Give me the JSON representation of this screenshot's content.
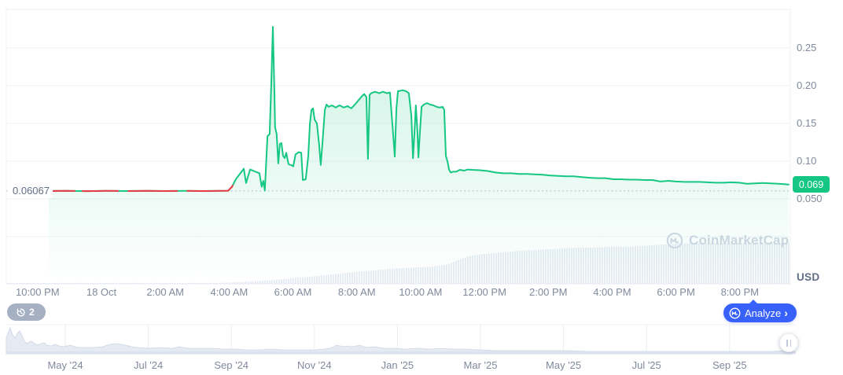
{
  "colors": {
    "up_green": "#16c784",
    "down_red": "#ea3943",
    "accent_blue": "#3861fb",
    "grid": "#f0f2f6",
    "frame": "#edf0f4",
    "axis_line": "#e7eaef",
    "label_gray": "#80899c",
    "volume_bar": "#e4eaf3",
    "nav_fill": "#e6ebf3",
    "nav_stroke": "#d3dbe8",
    "nav_base": "#dde3ee",
    "nav_grid": "#e9ecf2",
    "dotted_ref": "#c6cedb",
    "watermark": "#d0d7e4",
    "pill_gray": "#a6b0c3"
  },
  "chart": {
    "current_price": {
      "value": "0.069"
    },
    "reference_price": {
      "value": "0.06067"
    },
    "unit_label": "USD",
    "watermark_text": "CoinMarketCap"
  },
  "toolbar": {
    "history_count": "2",
    "analyze_label": "Analyze",
    "analyze_chevron": "›"
  },
  "chart_data": {
    "type": "line",
    "title": "",
    "xlabel": "",
    "ylabel": "Price (USD)",
    "x_unit": "hours relative to 18 Oct 00:00",
    "ylim": [
      0.05,
      0.3
    ],
    "grid": true,
    "y_ticks": [
      {
        "value": 0.25,
        "label": "0.25"
      },
      {
        "value": 0.2,
        "label": "0.20"
      },
      {
        "value": 0.15,
        "label": "0.15"
      },
      {
        "value": 0.1,
        "label": "0.10"
      },
      {
        "value": 0.05,
        "label": "0.050"
      }
    ],
    "x_ticks": [
      {
        "t": -2,
        "label": "10:00 PM"
      },
      {
        "t": 0,
        "label": "18 Oct"
      },
      {
        "t": 2,
        "label": "2:00 AM"
      },
      {
        "t": 4,
        "label": "4:00 AM"
      },
      {
        "t": 6,
        "label": "6:00 AM"
      },
      {
        "t": 8,
        "label": "8:00 AM"
      },
      {
        "t": 10,
        "label": "10:00 AM"
      },
      {
        "t": 12,
        "label": "12:00 PM"
      },
      {
        "t": 14,
        "label": "2:00 PM"
      },
      {
        "t": 16,
        "label": "4:00 PM"
      },
      {
        "t": 18,
        "label": "6:00 PM"
      },
      {
        "t": 20,
        "label": "8:00 PM"
      }
    ],
    "reference_line": {
      "value": 0.06067,
      "style": "dotted"
    },
    "last_price": 0.069,
    "series": [
      {
        "name": "Price",
        "color": "#16c784",
        "points": [
          [
            -1.65,
            0.0605
          ],
          [
            -1.08,
            0.0607
          ],
          [
            -0.47,
            0.0603
          ],
          [
            0.15,
            0.0606
          ],
          [
            0.76,
            0.0604
          ],
          [
            1.38,
            0.0607
          ],
          [
            2.0,
            0.0604
          ],
          [
            2.61,
            0.0606
          ],
          [
            3.23,
            0.0604
          ],
          [
            3.72,
            0.0607
          ],
          [
            3.97,
            0.0608
          ],
          [
            4.09,
            0.066
          ],
          [
            4.21,
            0.076
          ],
          [
            4.46,
            0.09
          ],
          [
            4.53,
            0.071
          ],
          [
            4.66,
            0.089
          ],
          [
            4.83,
            0.086
          ],
          [
            4.95,
            0.084
          ],
          [
            5.02,
            0.066
          ],
          [
            5.07,
            0.074
          ],
          [
            5.12,
            0.061
          ],
          [
            5.17,
            0.107
          ],
          [
            5.2,
            0.133
          ],
          [
            5.27,
            0.136
          ],
          [
            5.32,
            0.2
          ],
          [
            5.37,
            0.278
          ],
          [
            5.42,
            0.19
          ],
          [
            5.44,
            0.145
          ],
          [
            5.49,
            0.136
          ],
          [
            5.54,
            0.097
          ],
          [
            5.59,
            0.123
          ],
          [
            5.64,
            0.124
          ],
          [
            5.69,
            0.107
          ],
          [
            5.74,
            0.104
          ],
          [
            5.79,
            0.111
          ],
          [
            5.86,
            0.096
          ],
          [
            5.94,
            0.095
          ],
          [
            6.01,
            0.093
          ],
          [
            6.08,
            0.109
          ],
          [
            6.18,
            0.112
          ],
          [
            6.26,
            0.111
          ],
          [
            6.31,
            0.075
          ],
          [
            6.4,
            0.076
          ],
          [
            6.48,
            0.107
          ],
          [
            6.53,
            0.15
          ],
          [
            6.58,
            0.168
          ],
          [
            6.63,
            0.17
          ],
          [
            6.68,
            0.155
          ],
          [
            6.75,
            0.15
          ],
          [
            6.82,
            0.122
          ],
          [
            6.87,
            0.095
          ],
          [
            6.92,
            0.122
          ],
          [
            7.0,
            0.168
          ],
          [
            7.05,
            0.175
          ],
          [
            7.12,
            0.172
          ],
          [
            7.22,
            0.174
          ],
          [
            7.34,
            0.171
          ],
          [
            7.46,
            0.174
          ],
          [
            7.59,
            0.171
          ],
          [
            7.71,
            0.173
          ],
          [
            7.83,
            0.17
          ],
          [
            7.96,
            0.176
          ],
          [
            8.06,
            0.181
          ],
          [
            8.16,
            0.186
          ],
          [
            8.23,
            0.189
          ],
          [
            8.3,
            0.185
          ],
          [
            8.35,
            0.103
          ],
          [
            8.4,
            0.188
          ],
          [
            8.45,
            0.19
          ],
          [
            8.57,
            0.192
          ],
          [
            8.7,
            0.19
          ],
          [
            8.82,
            0.192
          ],
          [
            8.94,
            0.19
          ],
          [
            9.04,
            0.191
          ],
          [
            9.14,
            0.135
          ],
          [
            9.19,
            0.106
          ],
          [
            9.24,
            0.17
          ],
          [
            9.29,
            0.193
          ],
          [
            9.34,
            0.193
          ],
          [
            9.43,
            0.194
          ],
          [
            9.53,
            0.193
          ],
          [
            9.63,
            0.19
          ],
          [
            9.71,
            0.16
          ],
          [
            9.76,
            0.104
          ],
          [
            9.81,
            0.14
          ],
          [
            9.85,
            0.174
          ],
          [
            9.9,
            0.14
          ],
          [
            9.93,
            0.105
          ],
          [
            9.98,
            0.14
          ],
          [
            10.03,
            0.172
          ],
          [
            10.1,
            0.175
          ],
          [
            10.2,
            0.177
          ],
          [
            10.3,
            0.175
          ],
          [
            10.4,
            0.174
          ],
          [
            10.5,
            0.172
          ],
          [
            10.59,
            0.171
          ],
          [
            10.69,
            0.172
          ],
          [
            10.74,
            0.168
          ],
          [
            10.79,
            0.107
          ],
          [
            10.84,
            0.1
          ],
          [
            10.89,
            0.089
          ],
          [
            10.94,
            0.085
          ],
          [
            11.01,
            0.086
          ],
          [
            11.11,
            0.086
          ],
          [
            11.23,
            0.0885
          ],
          [
            11.36,
            0.0875
          ],
          [
            11.48,
            0.089
          ],
          [
            11.6,
            0.0885
          ],
          [
            11.85,
            0.088
          ],
          [
            12.1,
            0.087
          ],
          [
            12.34,
            0.085
          ],
          [
            12.59,
            0.084
          ],
          [
            12.83,
            0.084
          ],
          [
            13.08,
            0.083
          ],
          [
            13.33,
            0.083
          ],
          [
            13.57,
            0.0825
          ],
          [
            13.82,
            0.082
          ],
          [
            14.07,
            0.081
          ],
          [
            14.31,
            0.0805
          ],
          [
            14.56,
            0.08
          ],
          [
            14.8,
            0.08
          ],
          [
            15.05,
            0.079
          ],
          [
            15.3,
            0.078
          ],
          [
            15.55,
            0.0775
          ],
          [
            15.79,
            0.0775
          ],
          [
            16.04,
            0.076
          ],
          [
            16.28,
            0.076
          ],
          [
            16.53,
            0.0755
          ],
          [
            16.78,
            0.0755
          ],
          [
            17.02,
            0.075
          ],
          [
            17.27,
            0.075
          ],
          [
            17.51,
            0.073
          ],
          [
            17.76,
            0.074
          ],
          [
            18.01,
            0.073
          ],
          [
            18.25,
            0.0725
          ],
          [
            18.5,
            0.0725
          ],
          [
            18.75,
            0.0725
          ],
          [
            18.99,
            0.072
          ],
          [
            19.24,
            0.0715
          ],
          [
            19.49,
            0.0715
          ],
          [
            19.73,
            0.072
          ],
          [
            19.98,
            0.0715
          ],
          [
            20.23,
            0.07
          ],
          [
            20.47,
            0.0705
          ],
          [
            20.72,
            0.071
          ],
          [
            20.97,
            0.0705
          ],
          [
            21.21,
            0.07
          ],
          [
            21.4,
            0.0695
          ],
          [
            21.53,
            0.069
          ]
        ]
      }
    ],
    "flat_segment_red_ranges": [
      [
        -1.7,
        -0.84
      ],
      [
        -0.59,
        0.52
      ],
      [
        0.84,
        2.37
      ],
      [
        2.69,
        4.11
      ]
    ],
    "volume_profile": [
      [
        3.6,
        0.02
      ],
      [
        4.0,
        0.03
      ],
      [
        4.5,
        0.05
      ],
      [
        5.0,
        0.07
      ],
      [
        5.5,
        0.1
      ],
      [
        6.0,
        0.14
      ],
      [
        6.5,
        0.17
      ],
      [
        7.0,
        0.21
      ],
      [
        7.5,
        0.25
      ],
      [
        8.0,
        0.29
      ],
      [
        8.5,
        0.32
      ],
      [
        9.0,
        0.36
      ],
      [
        9.5,
        0.38
      ],
      [
        10.0,
        0.4
      ],
      [
        10.4,
        0.42
      ],
      [
        10.8,
        0.46
      ],
      [
        11.1,
        0.55
      ],
      [
        11.3,
        0.62
      ],
      [
        11.6,
        0.68
      ],
      [
        12.0,
        0.72
      ],
      [
        12.5,
        0.75
      ],
      [
        13.0,
        0.79
      ],
      [
        13.5,
        0.81
      ],
      [
        14.0,
        0.83
      ],
      [
        14.5,
        0.85
      ],
      [
        15.0,
        0.87
      ],
      [
        15.5,
        0.87
      ],
      [
        16.0,
        0.89
      ],
      [
        16.5,
        0.89
      ],
      [
        17.0,
        0.91
      ],
      [
        17.5,
        0.94
      ],
      [
        18.0,
        0.96
      ],
      [
        18.5,
        0.98
      ],
      [
        19.0,
        0.98
      ],
      [
        19.5,
        0.96
      ],
      [
        20.0,
        0.98
      ],
      [
        20.5,
        1.0
      ],
      [
        21.0,
        0.98
      ],
      [
        21.6,
        0.98
      ]
    ],
    "navigator": {
      "months": [
        "May '24",
        "Jul '24",
        "Sep '24",
        "Nov '24",
        "Jan '25",
        "Mar '25",
        "May '25",
        "Jul '25",
        "Sep '25"
      ],
      "points": [
        [
          0,
          0.61
        ],
        [
          0.002,
          0.79
        ],
        [
          0.005,
          1.0
        ],
        [
          0.008,
          0.73
        ],
        [
          0.011,
          0.61
        ],
        [
          0.014,
          0.79
        ],
        [
          0.017,
          0.88
        ],
        [
          0.02,
          0.7
        ],
        [
          0.023,
          0.48
        ],
        [
          0.026,
          0.39
        ],
        [
          0.029,
          0.45
        ],
        [
          0.032,
          0.48
        ],
        [
          0.036,
          0.39
        ],
        [
          0.04,
          0.33
        ],
        [
          0.044,
          0.39
        ],
        [
          0.048,
          0.42
        ],
        [
          0.052,
          0.33
        ],
        [
          0.057,
          0.3
        ],
        [
          0.062,
          0.36
        ],
        [
          0.067,
          0.3
        ],
        [
          0.072,
          0.27
        ],
        [
          0.077,
          0.3
        ],
        [
          0.082,
          0.33
        ],
        [
          0.087,
          0.27
        ],
        [
          0.092,
          0.24
        ],
        [
          0.102,
          0.24
        ],
        [
          0.112,
          0.24
        ],
        [
          0.122,
          0.27
        ],
        [
          0.131,
          0.36
        ],
        [
          0.139,
          0.39
        ],
        [
          0.146,
          0.36
        ],
        [
          0.151,
          0.33
        ],
        [
          0.159,
          0.27
        ],
        [
          0.166,
          0.24
        ],
        [
          0.181,
          0.21
        ],
        [
          0.196,
          0.24
        ],
        [
          0.211,
          0.21
        ],
        [
          0.219,
          0.27
        ],
        [
          0.231,
          0.21
        ],
        [
          0.246,
          0.21
        ],
        [
          0.261,
          0.21
        ],
        [
          0.276,
          0.18
        ],
        [
          0.291,
          0.18
        ],
        [
          0.306,
          0.15
        ],
        [
          0.321,
          0.15
        ],
        [
          0.336,
          0.18
        ],
        [
          0.351,
          0.15
        ],
        [
          0.37,
          0.15
        ],
        [
          0.39,
          0.15
        ],
        [
          0.402,
          0.18
        ],
        [
          0.41,
          0.21
        ],
        [
          0.415,
          0.27
        ],
        [
          0.418,
          0.33
        ],
        [
          0.423,
          0.3
        ],
        [
          0.428,
          0.27
        ],
        [
          0.433,
          0.3
        ],
        [
          0.438,
          0.27
        ],
        [
          0.443,
          0.3
        ],
        [
          0.448,
          0.33
        ],
        [
          0.453,
          0.27
        ],
        [
          0.458,
          0.24
        ],
        [
          0.465,
          0.27
        ],
        [
          0.472,
          0.24
        ],
        [
          0.48,
          0.21
        ],
        [
          0.49,
          0.21
        ],
        [
          0.505,
          0.18
        ],
        [
          0.52,
          0.21
        ],
        [
          0.535,
          0.18
        ],
        [
          0.55,
          0.21
        ],
        [
          0.565,
          0.18
        ],
        [
          0.58,
          0.18
        ],
        [
          0.6,
          0.15
        ],
        [
          0.619,
          0.12
        ],
        [
          0.649,
          0.12
        ],
        [
          0.679,
          0.12
        ],
        [
          0.709,
          0.12
        ],
        [
          0.739,
          0.09
        ],
        [
          0.779,
          0.09
        ],
        [
          0.819,
          0.09
        ],
        [
          0.859,
          0.09
        ],
        [
          0.898,
          0.09
        ],
        [
          0.938,
          0.09
        ],
        [
          0.968,
          0.09
        ],
        [
          0.988,
          0.12
        ],
        [
          0.996,
          0.09
        ]
      ]
    }
  }
}
